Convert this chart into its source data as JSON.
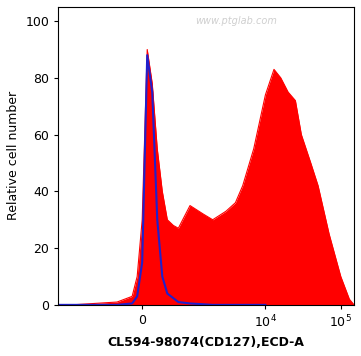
{
  "xlabel": "CL594-98074(CD127),ECD-A",
  "ylabel": "Relative cell number",
  "watermark": "www.ptglab.com",
  "ylim": [
    0,
    105
  ],
  "yticks": [
    0,
    20,
    40,
    60,
    80,
    100
  ],
  "background_color": "#ffffff",
  "blue_color": "#2020cc",
  "red_color": "#ff0000",
  "xlabel_fontsize": 9,
  "ylabel_fontsize": 9,
  "tick_fontsize": 9,
  "figsize": [
    3.61,
    3.56
  ],
  "dpi": 100,
  "linthresh": 500,
  "linscale": 0.3,
  "xlim_low": -3000,
  "xlim_high": 150000,
  "red_x": [
    -3000,
    -2000,
    -1000,
    -500,
    -200,
    -100,
    0,
    100,
    200,
    300,
    400,
    500,
    600,
    700,
    800,
    1000,
    1500,
    2000,
    3000,
    4000,
    5000,
    7000,
    10000,
    13000,
    16000,
    20000,
    25000,
    30000,
    40000,
    50000,
    70000,
    100000,
    130000,
    150000
  ],
  "red_y": [
    0,
    0,
    0.5,
    1,
    3,
    10,
    30,
    90,
    78,
    55,
    40,
    30,
    28,
    27,
    30,
    35,
    32,
    30,
    33,
    36,
    42,
    55,
    74,
    83,
    80,
    75,
    72,
    60,
    50,
    42,
    25,
    10,
    2,
    0
  ],
  "blue_x": [
    -3000,
    -1000,
    -500,
    -200,
    -100,
    0,
    100,
    200,
    300,
    400,
    500,
    700,
    1000,
    2000,
    3000,
    5000,
    10000
  ],
  "blue_y": [
    0,
    0,
    0,
    0.5,
    3,
    15,
    88,
    75,
    30,
    10,
    4,
    1,
    0.5,
    0,
    0,
    0,
    0
  ]
}
